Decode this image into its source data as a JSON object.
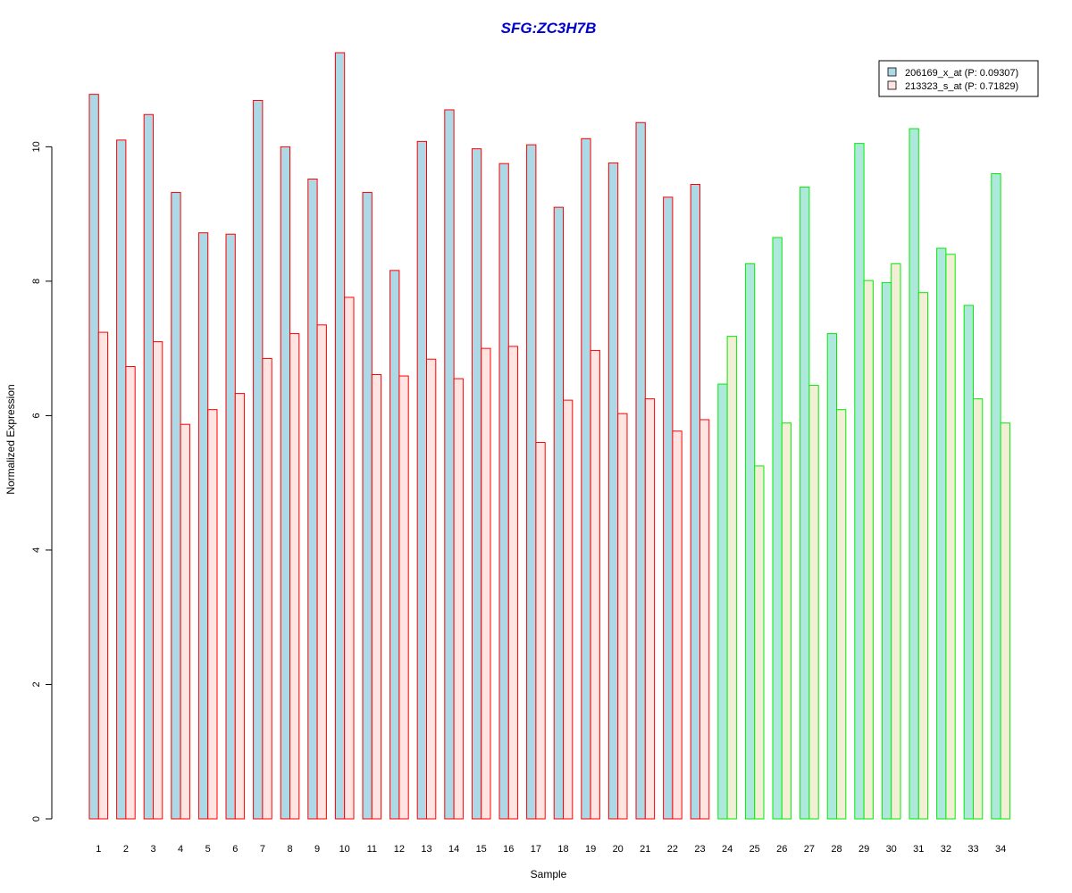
{
  "chart_data": {
    "type": "bar",
    "title": "SFG:ZC3H7B",
    "xlabel": "Sample",
    "ylabel": "Normalized Expression",
    "ylim": [
      0,
      11.4
    ],
    "yticks": [
      0,
      2,
      4,
      6,
      8,
      10
    ],
    "categories": [
      "1",
      "2",
      "3",
      "4",
      "5",
      "6",
      "7",
      "8",
      "9",
      "10",
      "11",
      "12",
      "13",
      "14",
      "15",
      "16",
      "17",
      "18",
      "19",
      "20",
      "21",
      "22",
      "23",
      "24",
      "25",
      "26",
      "27",
      "28",
      "29",
      "30",
      "31",
      "32",
      "33",
      "34"
    ],
    "series": [
      {
        "name": "206169_x_at (P: 0.09307)",
        "values": [
          10.78,
          10.1,
          10.48,
          9.32,
          8.72,
          8.7,
          10.69,
          10.0,
          9.52,
          11.4,
          9.32,
          8.16,
          10.08,
          10.55,
          9.97,
          9.75,
          10.03,
          9.1,
          10.12,
          9.76,
          10.36,
          9.25,
          9.44,
          6.47,
          8.26,
          8.65,
          9.4,
          7.22,
          10.05,
          7.98,
          10.27,
          8.49,
          7.64,
          9.6
        ]
      },
      {
        "name": "213323_s_at (P: 0.71829)",
        "values": [
          7.24,
          6.73,
          7.1,
          5.87,
          6.09,
          6.33,
          6.85,
          7.22,
          7.35,
          7.76,
          6.61,
          6.59,
          6.84,
          6.55,
          7.0,
          7.03,
          5.6,
          6.23,
          6.97,
          6.03,
          6.25,
          5.77,
          5.94,
          7.18,
          5.25,
          5.89,
          6.45,
          6.09,
          8.01,
          8.26,
          7.83,
          8.4,
          6.25,
          5.89
        ]
      }
    ],
    "group_split_after": 23,
    "colors": {
      "series1_fill": "#add8e6",
      "series2_fill": "#ffe4e1",
      "series1_fill_group2": "#aee8dc",
      "series2_fill_group2": "#f2efd6",
      "group1_border": "#ff0000",
      "group2_border": "#00ee00",
      "title": "#0000cc"
    },
    "legend_position": "top-right",
    "grid": false
  }
}
